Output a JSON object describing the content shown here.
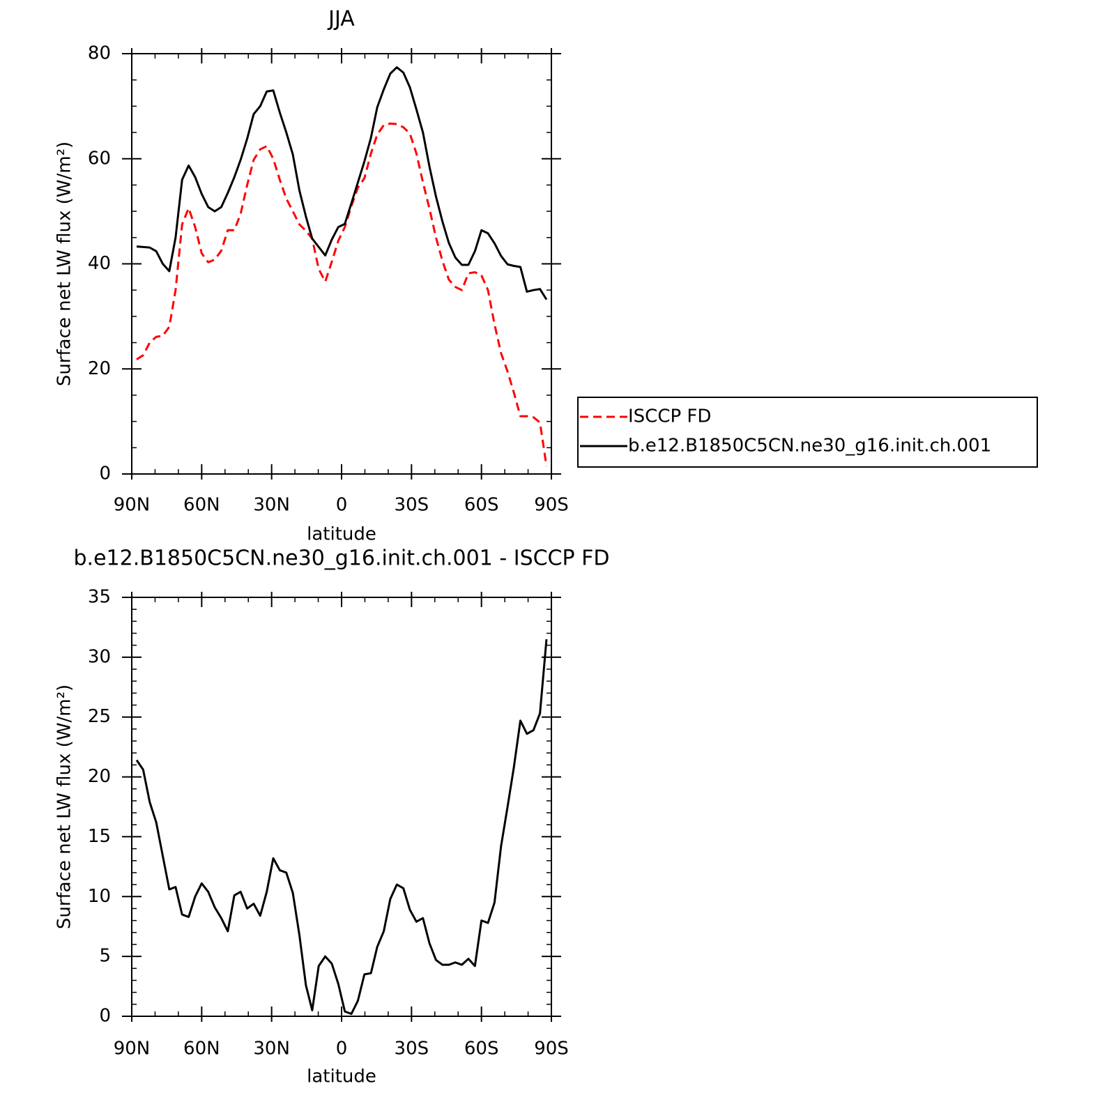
{
  "chart_data": [
    {
      "type": "line",
      "title": "JJA",
      "xlabel": "latitude",
      "ylabel": "Surface net LW flux (W/m²)",
      "x": [
        87.9,
        85.1,
        82.3,
        79.5,
        76.7,
        73.9,
        71.2,
        68.4,
        65.6,
        62.8,
        60.0,
        57.2,
        54.4,
        51.6,
        48.8,
        46.0,
        43.3,
        40.5,
        37.7,
        34.9,
        32.1,
        29.3,
        26.5,
        23.7,
        20.9,
        18.1,
        15.3,
        12.6,
        9.8,
        7.0,
        4.2,
        1.4,
        -1.4,
        -4.2,
        -7.0,
        -9.8,
        -12.6,
        -15.3,
        -18.1,
        -20.9,
        -23.7,
        -26.5,
        -29.3,
        -32.1,
        -34.9,
        -37.7,
        -40.5,
        -43.3,
        -46.0,
        -48.8,
        -51.6,
        -54.4,
        -57.2,
        -60.0,
        -62.8,
        -65.6,
        -68.4,
        -71.2,
        -73.9,
        -76.7,
        -79.5,
        -82.3,
        -85.1,
        -87.9
      ],
      "xlim": [
        90,
        -90
      ],
      "xticks": [
        {
          "value": 90,
          "label": "90N"
        },
        {
          "value": 60,
          "label": "60N"
        },
        {
          "value": 30,
          "label": "30N"
        },
        0,
        {
          "value": -30,
          "label": "30S"
        },
        {
          "value": -60,
          "label": "60S"
        },
        {
          "value": -90,
          "label": "90S"
        }
      ],
      "xminorticks": [
        80,
        70,
        50,
        40,
        20,
        10,
        -10,
        -20,
        -40,
        -50,
        -70,
        -80
      ],
      "ylim": [
        0,
        80
      ],
      "yticks": [
        0,
        20,
        40,
        60,
        80
      ],
      "yminorticks": [
        5,
        10,
        15,
        25,
        30,
        35,
        45,
        50,
        55,
        65,
        70,
        75
      ],
      "legend": "right",
      "series": [
        {
          "name": "ISCCP FD",
          "color": "#ff0000",
          "linestyle": "dashed",
          "values": [
            21.8,
            22.6,
            25.0,
            26.1,
            26.3,
            28.0,
            35.0,
            47.5,
            50.6,
            47.0,
            42.0,
            40.3,
            40.8,
            42.5,
            46.4,
            46.4,
            49.5,
            55.0,
            59.8,
            61.8,
            62.4,
            60.0,
            56.0,
            52.4,
            50.0,
            47.5,
            46.3,
            44.8,
            39.0,
            36.6,
            40.4,
            44.4,
            47.0,
            51.0,
            54.5,
            56.3,
            61.0,
            64.6,
            66.4,
            66.7,
            66.6,
            66.0,
            64.8,
            61.0,
            55.5,
            50.5,
            45.0,
            40.5,
            37.0,
            35.6,
            35.0,
            38.2,
            38.4,
            37.8,
            35.0,
            28.5,
            23.0,
            19.5,
            15.5,
            11.0,
            11.0,
            10.8,
            9.8,
            1.5
          ]
        },
        {
          "name": "b.e12.B1850C5CN.ne30_g16.init.ch.001",
          "color": "#000000",
          "linestyle": "solid",
          "values": [
            43.3,
            43.2,
            43.1,
            42.4,
            40.0,
            38.6,
            45.0,
            56.0,
            58.7,
            56.5,
            53.3,
            50.8,
            50.0,
            50.8,
            53.5,
            56.5,
            59.8,
            63.8,
            68.5,
            70.0,
            72.8,
            73.0,
            68.8,
            65.0,
            60.8,
            54.0,
            49.0,
            44.8,
            43.2,
            41.6,
            44.6,
            47.0,
            47.6,
            51.5,
            55.5,
            59.5,
            64.0,
            69.8,
            73.2,
            76.2,
            77.4,
            76.4,
            73.6,
            69.4,
            65.0,
            58.5,
            52.8,
            48.0,
            44.0,
            41.2,
            39.8,
            39.8,
            42.4,
            46.4,
            45.8,
            43.9,
            41.5,
            39.9,
            39.6,
            39.4,
            34.7,
            35.0,
            35.2,
            33.2
          ]
        }
      ]
    },
    {
      "type": "line",
      "title": "b.e12.B1850C5CN.ne30_g16.init.ch.001 - ISCCP FD",
      "xlabel": "latitude",
      "ylabel": "Surface net LW flux (W/m²)",
      "x": [
        87.9,
        85.1,
        82.3,
        79.5,
        76.7,
        73.9,
        71.2,
        68.4,
        65.6,
        62.8,
        60.0,
        57.2,
        54.4,
        51.6,
        48.8,
        46.0,
        43.3,
        40.5,
        37.7,
        34.9,
        32.1,
        29.3,
        26.5,
        23.7,
        20.9,
        18.1,
        15.3,
        12.6,
        9.8,
        7.0,
        4.2,
        1.4,
        -1.4,
        -4.2,
        -7.0,
        -9.8,
        -12.6,
        -15.3,
        -18.1,
        -20.9,
        -23.7,
        -26.5,
        -29.3,
        -32.1,
        -34.9,
        -37.7,
        -40.5,
        -43.3,
        -46.0,
        -48.8,
        -51.6,
        -54.4,
        -57.2,
        -60.0,
        -62.8,
        -65.6,
        -68.4,
        -71.2,
        -73.9,
        -76.7,
        -79.5,
        -82.3,
        -85.1,
        -87.9
      ],
      "xlim": [
        90,
        -90
      ],
      "xticks": [
        {
          "value": 90,
          "label": "90N"
        },
        {
          "value": 60,
          "label": "60N"
        },
        {
          "value": 30,
          "label": "30N"
        },
        0,
        {
          "value": -30,
          "label": "30S"
        },
        {
          "value": -60,
          "label": "60S"
        },
        {
          "value": -90,
          "label": "90S"
        }
      ],
      "xminorticks": [
        80,
        70,
        50,
        40,
        20,
        10,
        -10,
        -20,
        -40,
        -50,
        -70,
        -80
      ],
      "ylim": [
        0,
        35
      ],
      "yticks": [
        0,
        5,
        10,
        15,
        20,
        25,
        30,
        35
      ],
      "yminorticks": [
        1,
        2,
        3,
        4,
        6,
        7,
        8,
        9,
        11,
        12,
        13,
        14,
        16,
        17,
        18,
        19,
        21,
        22,
        23,
        24,
        26,
        27,
        28,
        29,
        31,
        32,
        33,
        34
      ],
      "series": [
        {
          "color": "#000000",
          "linestyle": "solid",
          "values": [
            21.4,
            20.6,
            17.9,
            16.2,
            13.4,
            10.6,
            10.8,
            8.5,
            8.3,
            10.0,
            11.1,
            10.4,
            9.1,
            8.2,
            7.1,
            10.1,
            10.4,
            9.0,
            9.4,
            8.4,
            10.4,
            13.2,
            12.2,
            12.0,
            10.3,
            6.8,
            2.6,
            0.5,
            4.2,
            5.0,
            4.4,
            2.7,
            0.4,
            0.2,
            1.3,
            3.5,
            3.6,
            5.8,
            7.1,
            9.8,
            11.0,
            10.7,
            8.9,
            7.9,
            8.2,
            6.1,
            4.7,
            4.3,
            4.3,
            4.5,
            4.3,
            4.8,
            4.2,
            8.0,
            7.8,
            9.5,
            14.2,
            17.5,
            20.8,
            24.7,
            23.6,
            23.9,
            25.3,
            31.5
          ]
        }
      ]
    }
  ]
}
